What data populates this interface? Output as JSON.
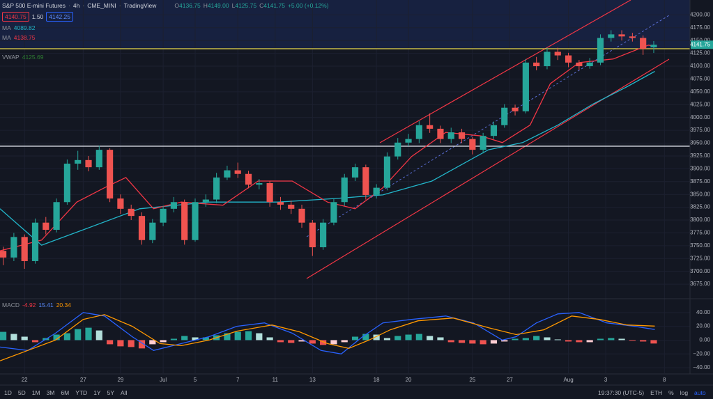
{
  "header": {
    "symbol": "S&P 500 E-mini Futures",
    "interval": "4h",
    "exchange": "CME_MINI",
    "source": "TradingView",
    "ohlc": [
      {
        "key": "O",
        "value": "4136.75"
      },
      {
        "key": "H",
        "value": "4149.00"
      },
      {
        "key": "L",
        "value": "4125.75"
      },
      {
        "key": "C",
        "value": "4141.75"
      }
    ],
    "change": "+5.00 (+0.12%)",
    "bid": "4140.75",
    "spread": "1.50",
    "ask": "4142.25",
    "indicators": [
      {
        "name": "MA",
        "value": "4089.82"
      },
      {
        "name": "MA",
        "value": "4138.75"
      },
      {
        "name": "VWAP",
        "value": "4125.69"
      }
    ],
    "macd": {
      "name": "MACD",
      "values": [
        "-4.92",
        "15.41",
        "20.34"
      ]
    }
  },
  "toolbar": {
    "ranges": [
      "1D",
      "5D",
      "1M",
      "3M",
      "6M",
      "YTD",
      "1Y",
      "5Y",
      "All"
    ],
    "time": "19:37:30 (UTC-5)",
    "session": "ETH",
    "options": [
      "%",
      "log",
      "auto"
    ]
  },
  "chart_data": [
    {
      "type": "candlestick",
      "up_color": "#26a69a",
      "down_color": "#ef5350",
      "xlim": [
        -0.3,
        64.4
      ],
      "xticks": [
        {
          "value": 2,
          "label": "22"
        },
        {
          "value": 7.5,
          "label": "27"
        },
        {
          "value": 11,
          "label": "29"
        },
        {
          "value": 15,
          "label": "Jul"
        },
        {
          "value": 18,
          "label": "5"
        },
        {
          "value": 22,
          "label": "7"
        },
        {
          "value": 25.5,
          "label": "11"
        },
        {
          "value": 29,
          "label": "13"
        },
        {
          "value": 35,
          "label": "18"
        },
        {
          "value": 38,
          "label": "20"
        },
        {
          "value": 44,
          "label": "25"
        },
        {
          "value": 47.5,
          "label": "27"
        },
        {
          "value": 53,
          "label": "Aug"
        },
        {
          "value": 56.5,
          "label": "3"
        },
        {
          "value": 62,
          "label": "8"
        }
      ],
      "ylim": [
        3648,
        4229
      ],
      "yticks": [
        {
          "value": 3675,
          "label": "3675.00"
        },
        {
          "value": 3700,
          "label": "3700.00"
        },
        {
          "value": 3725,
          "label": "3725.00"
        },
        {
          "value": 3750,
          "label": "3750.00"
        },
        {
          "value": 3775,
          "label": "3775.00"
        },
        {
          "value": 3800,
          "label": "3800.00"
        },
        {
          "value": 3825,
          "label": "3825.00"
        },
        {
          "value": 3850,
          "label": "3850.00"
        },
        {
          "value": 3875,
          "label": "3875.00"
        },
        {
          "value": 3900,
          "label": "3900.00"
        },
        {
          "value": 3925,
          "label": "3925.00"
        },
        {
          "value": 3950,
          "label": "3950.00"
        },
        {
          "value": 3975,
          "label": "3975.00"
        },
        {
          "value": 4000,
          "label": "4000.00"
        },
        {
          "value": 4025,
          "label": "4025.00"
        },
        {
          "value": 4050,
          "label": "4050.00"
        },
        {
          "value": 4075,
          "label": "4075.00"
        },
        {
          "value": 4100,
          "label": "4100.00"
        },
        {
          "value": 4125,
          "label": "4125.00"
        },
        {
          "value": 4150,
          "label": "4150.00"
        },
        {
          "value": 4175,
          "label": "4175.00"
        },
        {
          "value": 4200,
          "label": "4200.00"
        }
      ],
      "open": [
        3740,
        3727,
        3767,
        3720,
        3795,
        3781,
        3835,
        3910,
        3917,
        3903,
        3937,
        3842,
        3822,
        3808,
        3761,
        3795,
        3822,
        3835,
        3761,
        3835,
        3840,
        3883,
        3897,
        3890,
        3869,
        3872,
        3835,
        3830,
        3822,
        3795,
        3747,
        3795,
        3835,
        3883,
        3903,
        3849,
        3863,
        3924,
        3951,
        3958,
        3985,
        3978,
        3958,
        3971,
        3958,
        3937,
        3964,
        3985,
        4019,
        4012,
        4107,
        4100,
        4128,
        4121,
        4107,
        4100,
        4107,
        4155,
        4162,
        4158,
        4155,
        4136.75
      ],
      "high": [
        3748,
        3775,
        3772,
        3803,
        3806,
        3842,
        3918,
        3935,
        3925,
        3945,
        3940,
        3850,
        3830,
        3815,
        3802,
        3828,
        3845,
        3840,
        3842,
        3850,
        3892,
        3906,
        3912,
        3896,
        3880,
        3876,
        3845,
        3838,
        3830,
        3800,
        3802,
        3842,
        3890,
        3910,
        3908,
        3870,
        3932,
        3960,
        3968,
        3993,
        4008,
        3984,
        3980,
        3978,
        3962,
        3970,
        3992,
        4026,
        4025,
        4114,
        4118,
        4136,
        4136,
        4126,
        4112,
        4116,
        4162,
        4170,
        4170,
        4165,
        4160,
        4149
      ],
      "low": [
        3712,
        3720,
        3705,
        3715,
        3772,
        3776,
        3830,
        3898,
        3895,
        3898,
        3835,
        3812,
        3800,
        3752,
        3755,
        3788,
        3815,
        3752,
        3758,
        3826,
        3833,
        3878,
        3882,
        3862,
        3860,
        3826,
        3820,
        3812,
        3785,
        3730,
        3742,
        3790,
        3828,
        3876,
        3840,
        3842,
        3858,
        3918,
        3944,
        3950,
        3970,
        3950,
        3950,
        3950,
        3928,
        3930,
        3958,
        3980,
        4004,
        4008,
        4092,
        4094,
        4112,
        4098,
        4092,
        4095,
        4102,
        4148,
        4150,
        4148,
        4122,
        4125.75
      ],
      "close": [
        3727,
        3767,
        3720,
        3795,
        3781,
        3835,
        3910,
        3917,
        3903,
        3937,
        3842,
        3822,
        3808,
        3761,
        3795,
        3822,
        3835,
        3761,
        3835,
        3840,
        3883,
        3897,
        3890,
        3869,
        3872,
        3835,
        3830,
        3822,
        3795,
        3747,
        3795,
        3835,
        3883,
        3903,
        3849,
        3863,
        3924,
        3951,
        3958,
        3985,
        3978,
        3958,
        3971,
        3958,
        3937,
        3964,
        3985,
        4019,
        4012,
        4107,
        4100,
        4128,
        4121,
        4107,
        4100,
        4107,
        4155,
        4162,
        4158,
        4155,
        4134,
        4141.75
      ],
      "series": [
        {
          "name": "MA",
          "color": "#22b5c9",
          "x": [
            -0.3,
            3.6,
            7.5,
            12.8,
            19.3,
            25.8,
            31.1,
            35.6,
            40.2,
            45.5,
            48.7,
            52.0,
            55.3,
            58.5,
            61.1
          ],
          "values": [
            3822,
            3751,
            3781,
            3822,
            3835,
            3835,
            3842,
            3849,
            3876,
            3937,
            3951,
            3985,
            4026,
            4060,
            4089.82
          ]
        },
        {
          "name": "MA",
          "color": "#f23645",
          "x": [
            -0.3,
            3.6,
            6.9,
            9.5,
            11.5,
            14.1,
            16.7,
            20.6,
            23.9,
            27.1,
            30.4,
            33.0,
            35.6,
            38.3,
            41.5,
            44.8,
            46.8,
            49.4,
            51.3,
            54.0,
            57.2,
            60.5,
            61.1
          ],
          "values": [
            3740,
            3761,
            3835,
            3863,
            3883,
            3822,
            3835,
            3829,
            3876,
            3876,
            3835,
            3822,
            3863,
            3924,
            3971,
            3964,
            3951,
            3985,
            4066,
            4107,
            4114,
            4141,
            4138.75
          ]
        }
      ],
      "hlines": [
        {
          "value": 3944,
          "color": "#e0e3eb"
        },
        {
          "value": 4134,
          "color": "#e8d84a"
        }
      ],
      "last_price": 4141.75,
      "last_color": "#26a69a"
    },
    {
      "type": "macd",
      "xlim": [
        -0.3,
        64.4
      ],
      "ylim": [
        -48,
        59
      ],
      "yticks": [
        {
          "value": -40,
          "label": "−40.00"
        },
        {
          "value": -20,
          "label": "−20.00"
        },
        {
          "value": 0,
          "label": "0.00"
        },
        {
          "value": 20,
          "label": "20.00"
        },
        {
          "value": 40,
          "label": "40.00"
        }
      ],
      "histogram": [
        12,
        9,
        5,
        -3,
        3,
        8,
        10,
        16,
        18,
        14,
        -6,
        -9,
        -10,
        -12,
        -6,
        -3,
        2,
        6,
        4,
        4,
        7,
        10,
        12,
        13,
        10,
        4,
        -3,
        -4,
        -2,
        -5,
        -7,
        -6,
        -3,
        5,
        9,
        8,
        3,
        6,
        8,
        9,
        6,
        4,
        -3,
        -4,
        -5,
        -6,
        -5,
        -2,
        2,
        3,
        6,
        4,
        1,
        -2,
        -3,
        -3,
        2,
        3,
        2,
        -1,
        -2,
        -4.92
      ],
      "histogram_colors": [
        "#26a69a",
        "#b2dfdb",
        "#ffcdd2",
        "#ef5350"
      ],
      "series": [
        {
          "name": "MACD",
          "color": "#2962ff",
          "x": [
            -0.3,
            2.3,
            4.9,
            7.5,
            9.5,
            12.1,
            14.1,
            16.7,
            19.3,
            21.9,
            24.5,
            27.1,
            29.8,
            31.7,
            33.7,
            35.6,
            38.3,
            41.5,
            44.1,
            46.8,
            48.1,
            50.0,
            52.0,
            54.0,
            56.6,
            59.2,
            61.1
          ],
          "values": [
            -10,
            -15,
            10,
            40,
            35,
            5,
            -15,
            -5,
            5,
            20,
            25,
            10,
            -15,
            -20,
            5,
            25,
            30,
            35,
            25,
            0,
            5,
            25,
            38,
            40,
            25,
            20,
            15.41
          ]
        },
        {
          "name": "Signal",
          "color": "#ff9800",
          "x": [
            -0.3,
            2.3,
            4.9,
            7.5,
            9.5,
            12.1,
            14.7,
            16.7,
            19.3,
            21.9,
            25.2,
            27.8,
            30.4,
            32.4,
            34.3,
            36.3,
            38.9,
            42.2,
            45.5,
            48.1,
            50.7,
            53.3,
            55.9,
            58.5,
            61.1
          ],
          "values": [
            -30,
            -15,
            0,
            30,
            37,
            20,
            -5,
            -8,
            0,
            13,
            22,
            12,
            -5,
            -12,
            0,
            15,
            28,
            32,
            18,
            8,
            15,
            35,
            30,
            22,
            20.34
          ]
        }
      ]
    }
  ]
}
